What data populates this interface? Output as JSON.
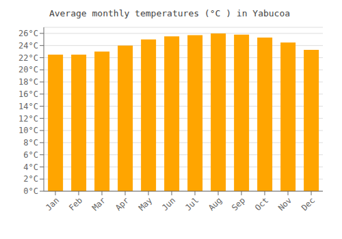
{
  "chart_data": {
    "type": "bar",
    "title": "Average monthly temperatures (°C ) in Yabucoa",
    "categories": [
      "Jan",
      "Feb",
      "Mar",
      "Apr",
      "May",
      "Jun",
      "Jul",
      "Aug",
      "Sep",
      "Oct",
      "Nov",
      "Dec"
    ],
    "values": [
      22.5,
      22.5,
      23.0,
      24.0,
      25.0,
      25.5,
      25.7,
      26.0,
      25.8,
      25.3,
      24.5,
      23.3
    ],
    "color": "#FFA500",
    "ylim": [
      0,
      27
    ],
    "yticks": [
      {
        "value": 0,
        "label": "0°C"
      },
      {
        "value": 2,
        "label": "2°C"
      },
      {
        "value": 4,
        "label": "4°C"
      },
      {
        "value": 6,
        "label": "6°C"
      },
      {
        "value": 8,
        "label": "8°C"
      },
      {
        "value": 10,
        "label": "10°C"
      },
      {
        "value": 12,
        "label": "12°C"
      },
      {
        "value": 14,
        "label": "14°C"
      },
      {
        "value": 16,
        "label": "16°C"
      },
      {
        "value": 18,
        "label": "18°C"
      },
      {
        "value": 20,
        "label": "20°C"
      },
      {
        "value": 22,
        "label": "22°C"
      },
      {
        "value": 24,
        "label": "24°C"
      },
      {
        "value": 26,
        "label": "26°C"
      }
    ],
    "grid": true
  }
}
